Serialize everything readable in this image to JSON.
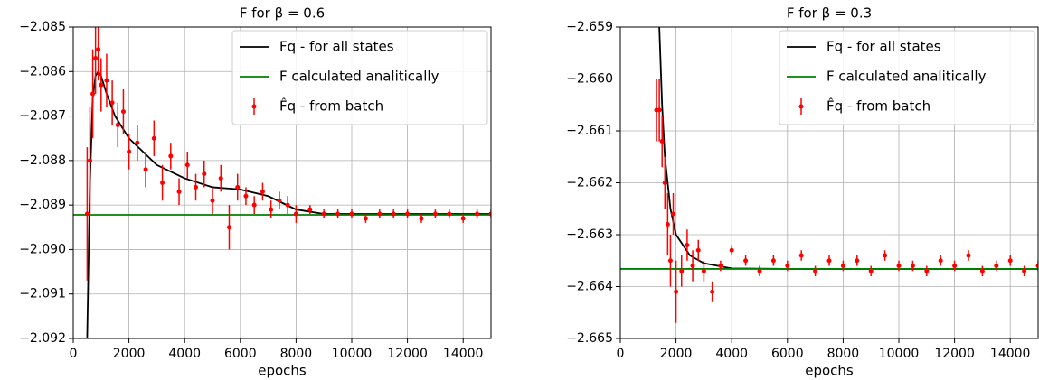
{
  "chart_data": [
    {
      "type": "line",
      "title": "F for β = 0.6",
      "xlabel": "epochs",
      "xlim": [
        0,
        15000
      ],
      "xticks": [
        0,
        2000,
        4000,
        6000,
        8000,
        10000,
        12000,
        14000
      ],
      "ylim": [
        -2.092,
        -2.085
      ],
      "yticks": [
        {
          "value": -2.092,
          "label": "−2.092"
        },
        {
          "value": -2.091,
          "label": "−2.091"
        },
        {
          "value": -2.09,
          "label": "−2.090"
        },
        {
          "value": -2.089,
          "label": "−2.089"
        },
        {
          "value": -2.088,
          "label": "−2.088"
        },
        {
          "value": -2.087,
          "label": "−2.087"
        },
        {
          "value": -2.086,
          "label": "−2.086"
        },
        {
          "value": -2.085,
          "label": "−2.085"
        }
      ],
      "grid": true,
      "legend": "upper right",
      "series": [
        {
          "name": "Fq - for all states",
          "color": "#000000",
          "style": "line",
          "x": [
            500,
            600,
            700,
            800,
            900,
            1000,
            1200,
            1500,
            2000,
            3000,
            4000,
            5000,
            6000,
            7000,
            8000,
            9000,
            10000,
            12000,
            15000
          ],
          "values": [
            -2.092,
            -2.0885,
            -2.0866,
            -2.0861,
            -2.086,
            -2.0861,
            -2.0865,
            -2.087,
            -2.0875,
            -2.0881,
            -2.0884,
            -2.0886,
            -2.08865,
            -2.0888,
            -2.0891,
            -2.0892,
            -2.0892,
            -2.0892,
            -2.0892
          ]
        },
        {
          "name": "F calculated analitically",
          "color": "#008000",
          "style": "line",
          "x": [
            0,
            15000
          ],
          "values": [
            -2.08922,
            -2.08922
          ]
        },
        {
          "name": "F̂q - from batch",
          "color": "#ff0000",
          "style": "errorbar",
          "x": [
            500,
            600,
            700,
            800,
            900,
            1000,
            1200,
            1400,
            1600,
            1800,
            2000,
            2300,
            2600,
            2900,
            3200,
            3500,
            3800,
            4100,
            4400,
            4700,
            5000,
            5300,
            5600,
            5900,
            6200,
            6500,
            6800,
            7100,
            7400,
            7700,
            8000,
            8500,
            9000,
            9500,
            10000,
            10500,
            11000,
            11500,
            12000,
            12500,
            13000,
            13500,
            14000,
            14500,
            15000
          ],
          "values": [
            -2.0892,
            -2.088,
            -2.0865,
            -2.0857,
            -2.0855,
            -2.0863,
            -2.0862,
            -2.0867,
            -2.0872,
            -2.0869,
            -2.0878,
            -2.0876,
            -2.0882,
            -2.0875,
            -2.0885,
            -2.0879,
            -2.0887,
            -2.0881,
            -2.0886,
            -2.0883,
            -2.0889,
            -2.0884,
            -2.0895,
            -2.0886,
            -2.0888,
            -2.089,
            -2.0887,
            -2.0891,
            -2.0889,
            -2.089,
            -2.0892,
            -2.0891,
            -2.0892,
            -2.0892,
            -2.0892,
            -2.0893,
            -2.0892,
            -2.0892,
            -2.0892,
            -2.0893,
            -2.0892,
            -2.0892,
            -2.0893,
            -2.0892,
            -2.0892
          ],
          "errors": [
            0.0015,
            0.0012,
            0.001,
            0.0008,
            0.0007,
            0.0006,
            0.0006,
            0.0005,
            0.0005,
            0.0005,
            0.0004,
            0.0004,
            0.0004,
            0.0004,
            0.0004,
            0.0003,
            0.0003,
            0.0003,
            0.0003,
            0.0003,
            0.0003,
            0.0003,
            0.0005,
            0.0003,
            0.0002,
            0.0002,
            0.0002,
            0.0002,
            0.0002,
            0.0002,
            0.0002,
            0.0001,
            0.0001,
            0.0001,
            0.0001,
            0.0001,
            0.0001,
            0.0001,
            0.0001,
            0.0001,
            0.0001,
            0.0001,
            0.0001,
            0.0001,
            0.0001
          ]
        }
      ]
    },
    {
      "type": "line",
      "title": "F for β = 0.3",
      "xlabel": "epochs",
      "xlim": [
        0,
        15000
      ],
      "xticks": [
        0,
        2000,
        4000,
        6000,
        8000,
        10000,
        12000,
        14000
      ],
      "ylim": [
        -2.665,
        -2.659
      ],
      "yticks": [
        {
          "value": -2.665,
          "label": "−2.665"
        },
        {
          "value": -2.664,
          "label": "−2.664"
        },
        {
          "value": -2.663,
          "label": "−2.663"
        },
        {
          "value": -2.662,
          "label": "−2.662"
        },
        {
          "value": -2.661,
          "label": "−2.661"
        },
        {
          "value": -2.66,
          "label": "−2.660"
        },
        {
          "value": -2.659,
          "label": "−2.659"
        }
      ],
      "grid": true,
      "legend": "upper right",
      "series": [
        {
          "name": "Fq - for all states",
          "color": "#000000",
          "style": "line",
          "x": [
            1400,
            1500,
            1600,
            1800,
            2000,
            2500,
            3000,
            4000,
            6000,
            15000
          ],
          "values": [
            -2.659,
            -2.6605,
            -2.6615,
            -2.6625,
            -2.663,
            -2.6634,
            -2.66355,
            -2.66365,
            -2.66366,
            -2.66366
          ]
        },
        {
          "name": "F calculated analitically",
          "color": "#008000",
          "style": "line",
          "x": [
            0,
            15000
          ],
          "values": [
            -2.66366,
            -2.66366
          ]
        },
        {
          "name": "F̂q - from batch",
          "color": "#ff0000",
          "style": "errorbar",
          "x": [
            1300,
            1400,
            1500,
            1600,
            1700,
            1800,
            1900,
            2000,
            2200,
            2400,
            2600,
            2800,
            3000,
            3300,
            3600,
            4000,
            4500,
            5000,
            5500,
            6000,
            6500,
            7000,
            7500,
            8000,
            8500,
            9000,
            9500,
            10000,
            10500,
            11000,
            11500,
            12000,
            12500,
            13000,
            13500,
            14000,
            14500,
            15000
          ],
          "values": [
            -2.6606,
            -2.6606,
            -2.6612,
            -2.662,
            -2.6628,
            -2.6635,
            -2.6626,
            -2.6641,
            -2.6637,
            -2.6632,
            -2.6636,
            -2.6633,
            -2.6637,
            -2.6641,
            -2.6636,
            -2.6633,
            -2.6635,
            -2.6637,
            -2.6635,
            -2.6636,
            -2.6634,
            -2.6637,
            -2.6635,
            -2.6636,
            -2.6635,
            -2.6637,
            -2.6634,
            -2.6636,
            -2.6636,
            -2.6637,
            -2.6635,
            -2.6636,
            -2.6634,
            -2.6637,
            -2.6636,
            -2.6635,
            -2.6637,
            -2.6636
          ],
          "errors": [
            0.0006,
            0.0006,
            0.0005,
            0.0005,
            0.0006,
            0.0005,
            0.0004,
            0.0006,
            0.0003,
            0.0003,
            0.0003,
            0.0002,
            0.0002,
            0.0002,
            0.0001,
            0.0001,
            0.0001,
            0.0001,
            0.0001,
            0.0001,
            0.0001,
            0.0001,
            0.0001,
            0.0001,
            0.0001,
            0.0001,
            0.0001,
            0.0001,
            0.0001,
            0.0001,
            0.0001,
            0.0001,
            0.0001,
            0.0001,
            0.0001,
            0.0001,
            0.0001,
            0.0001
          ]
        }
      ]
    }
  ]
}
